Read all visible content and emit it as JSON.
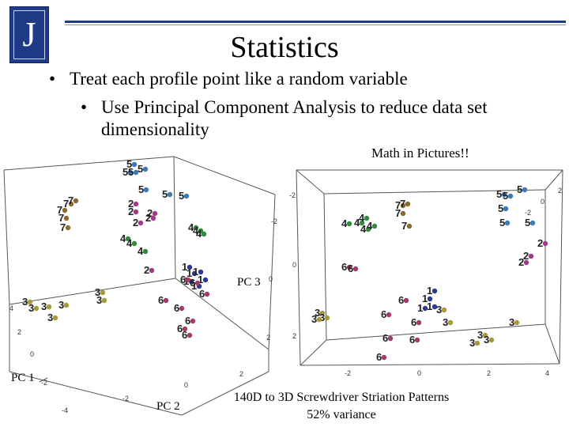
{
  "header": {
    "logo_letter": "J",
    "title": "Statistics"
  },
  "bullets": [
    {
      "mark": "•",
      "text": "Treat each profile point like a random variable"
    },
    {
      "mark": "•",
      "text_line1": "Use Principal Component Analysis to reduce data set",
      "text_line2": "dimensionality"
    }
  ],
  "note": "Math in Pictures!!",
  "axes": {
    "pc1": "PC 1",
    "pc2": "PC 2",
    "pc3": "PC 3"
  },
  "caption": {
    "line1": "140D to 3D Screwdriver Striation Patterns",
    "line2": "52% variance"
  },
  "colors": {
    "brand": "#1f3a86",
    "class1": "#2b3a8f",
    "class2": "#a23a8c",
    "class3": "#a8983c",
    "class4": "#2e8b3a",
    "class5": "#3a78b8",
    "class6": "#a23a6c",
    "class7": "#8b6a2e"
  },
  "chart_data": [
    {
      "type": "scatter",
      "title": "",
      "xlabel": "PC 1",
      "ylabel": "PC 2",
      "zlabel": "PC 3",
      "x_ticks": [
        "-4",
        "-2",
        "0",
        "2"
      ],
      "y_ticks": [
        "4",
        "2",
        "0",
        "-2"
      ],
      "z_ticks": [
        "-2",
        "0",
        "2"
      ],
      "point_labels": [
        "1",
        "2",
        "3",
        "4",
        "5",
        "6",
        "7"
      ]
    },
    {
      "type": "scatter",
      "title": "",
      "x_ticks": [
        "-2",
        "0",
        "2",
        "4"
      ],
      "y_ticks": [
        "-2",
        "0",
        "2"
      ],
      "z_ticks": [
        "2",
        "0",
        "-2"
      ],
      "point_labels": [
        "1",
        "2",
        "3",
        "4",
        "5",
        "6",
        "7"
      ]
    }
  ]
}
